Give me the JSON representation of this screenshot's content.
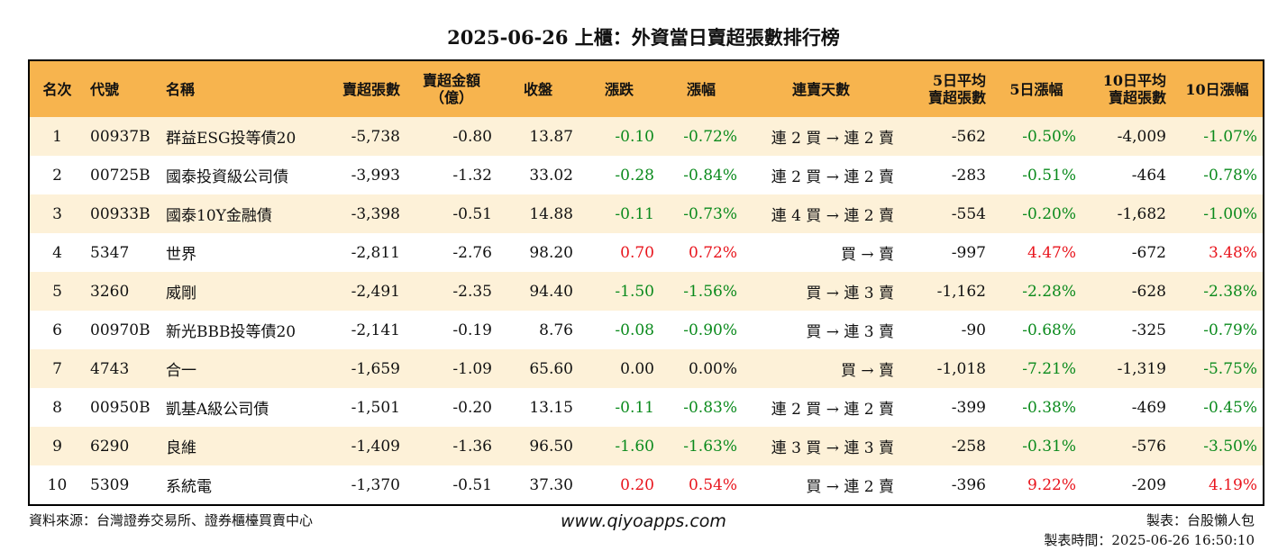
{
  "title": "2025-06-26 上櫃：外資當日賣超張數排行榜",
  "columns": [
    "名次",
    "代號",
    "名稱",
    "賣超張數",
    "賣超金額\n（億）",
    "收盤",
    "漲跌",
    "漲幅",
    "連賣天數",
    "5日平均\n賣超張數",
    "5日漲幅",
    "10日平均\n賣超張數",
    "10日漲幅"
  ],
  "rows": [
    [
      "1",
      "00937B",
      "群益ESG投等債20",
      "-5,738",
      "-0.80",
      "13.87",
      "-0.10",
      "-0.72%",
      "連 2 買 → 連 2 賣",
      "-562",
      "-0.50%",
      "-4,009",
      "-1.07%"
    ],
    [
      "2",
      "00725B",
      "國泰投資級公司債",
      "-3,993",
      "-1.32",
      "33.02",
      "-0.28",
      "-0.84%",
      "連 2 買 → 連 2 賣",
      "-283",
      "-0.51%",
      "-464",
      "-0.78%"
    ],
    [
      "3",
      "00933B",
      "國泰10Y金融債",
      "-3,398",
      "-0.51",
      "14.88",
      "-0.11",
      "-0.73%",
      "連 4 買 → 連 2 賣",
      "-554",
      "-0.20%",
      "-1,682",
      "-1.00%"
    ],
    [
      "4",
      "5347",
      "世界",
      "-2,811",
      "-2.76",
      "98.20",
      "0.70",
      "0.72%",
      "買 → 賣",
      "-997",
      "4.47%",
      "-672",
      "3.48%"
    ],
    [
      "5",
      "3260",
      "威剛",
      "-2,491",
      "-2.35",
      "94.40",
      "-1.50",
      "-1.56%",
      "買 → 連 3 賣",
      "-1,162",
      "-2.28%",
      "-628",
      "-2.38%"
    ],
    [
      "6",
      "00970B",
      "新光BBB投等債20",
      "-2,141",
      "-0.19",
      "8.76",
      "-0.08",
      "-0.90%",
      "買 → 連 3 賣",
      "-90",
      "-0.68%",
      "-325",
      "-0.79%"
    ],
    [
      "7",
      "4743",
      "合一",
      "-1,659",
      "-1.09",
      "65.60",
      "0.00",
      "0.00%",
      "買 → 賣",
      "-1,018",
      "-7.21%",
      "-1,319",
      "-5.75%"
    ],
    [
      "8",
      "00950B",
      "凱基A級公司債",
      "-1,501",
      "-0.20",
      "13.15",
      "-0.11",
      "-0.83%",
      "連 2 買 → 連 2 賣",
      "-399",
      "-0.38%",
      "-469",
      "-0.45%"
    ],
    [
      "9",
      "6290",
      "良維",
      "-1,409",
      "-1.36",
      "96.50",
      "-1.60",
      "-1.63%",
      "連 3 買 → 連 3 賣",
      "-258",
      "-0.31%",
      "-576",
      "-3.50%"
    ],
    [
      "10",
      "5309",
      "系統電",
      "-1,370",
      "-0.51",
      "37.30",
      "0.20",
      "0.54%",
      "買 → 連 2 賣",
      "-396",
      "9.22%",
      "-209",
      "4.19%"
    ]
  ],
  "footer": {
    "source": "資料來源：台灣證券交易所、證券櫃檯買賣中心",
    "website": "www.qiyoapps.com",
    "maker": "製表：台股懶人包",
    "made_time": "製表時間：2025-06-26 16:50:10"
  },
  "colors": {
    "header_bg": "#f7b44e",
    "odd_row_bg": "#fdf1d8",
    "positive": "#e8141c",
    "negative": "#0a8a1c"
  }
}
